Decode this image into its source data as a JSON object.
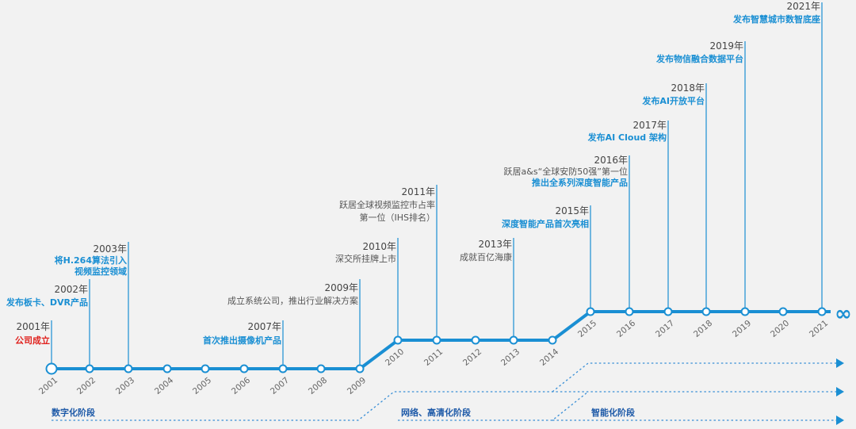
{
  "timeline": {
    "colors": {
      "line": "#1a8fd3",
      "stem": "#1a8fd3",
      "highlight": "#1a8fd3",
      "accent_red": "#e0201c",
      "phase_text": "#1e5aa8",
      "dotted": "#3a8fd6"
    },
    "axis_years": [
      "2001",
      "2002",
      "2003",
      "2004",
      "2005",
      "2006",
      "2007",
      "2008",
      "2009",
      "2010",
      "2011",
      "2012",
      "2013",
      "2014",
      "2015",
      "2016",
      "2017",
      "2018",
      "2019",
      "2020",
      "2021"
    ],
    "end_symbol": "∞",
    "events": [
      {
        "year": "2001年",
        "lines": [
          {
            "text": "公司成立",
            "style": "red"
          }
        ]
      },
      {
        "year": "2002年",
        "lines": [
          {
            "text": "发布板卡、DVR产品",
            "style": "blue"
          }
        ]
      },
      {
        "year": "2003年",
        "lines": [
          {
            "text": "将H.264算法引入",
            "style": "blue"
          },
          {
            "text": "视频监控领域",
            "style": "blue"
          }
        ]
      },
      {
        "year": "2007年",
        "lines": [
          {
            "text": "首次推出摄像机产品",
            "style": "blue"
          }
        ]
      },
      {
        "year": "2009年",
        "lines": [
          {
            "text": "成立系统公司，推出行业解决方案",
            "style": "gray"
          }
        ]
      },
      {
        "year": "2010年",
        "lines": [
          {
            "text": "深交所挂牌上市",
            "style": "gray"
          }
        ]
      },
      {
        "year": "2011年",
        "lines": [
          {
            "text": "跃居全球视频监控市占率",
            "style": "gray"
          },
          {
            "text": "第一位（IHS排名）",
            "style": "gray"
          }
        ]
      },
      {
        "year": "2013年",
        "lines": [
          {
            "text": "成就百亿海康",
            "style": "gray"
          }
        ]
      },
      {
        "year": "2015年",
        "lines": [
          {
            "text": "深度智能产品首次亮相",
            "style": "blue"
          }
        ]
      },
      {
        "year": "2016年",
        "lines": [
          {
            "text": "跃居a&s“全球安防50强”第一位",
            "style": "gray"
          },
          {
            "text": "推出全系列深度智能产品",
            "style": "blue"
          }
        ]
      },
      {
        "year": "2017年",
        "lines": [
          {
            "text": "发布AI Cloud 架构",
            "style": "blue"
          }
        ]
      },
      {
        "year": "2018年",
        "lines": [
          {
            "text": "发布AI开放平台",
            "style": "blue"
          }
        ]
      },
      {
        "year": "2019年",
        "lines": [
          {
            "text": "发布物信融合数据平台",
            "style": "blue"
          }
        ]
      },
      {
        "year": "2021年",
        "lines": [
          {
            "text": "发布智慧城市数智底座",
            "style": "blue"
          }
        ]
      }
    ],
    "phases": [
      {
        "label": "数字化阶段"
      },
      {
        "label": "网络、高清化阶段"
      },
      {
        "label": "智能化阶段"
      }
    ]
  }
}
